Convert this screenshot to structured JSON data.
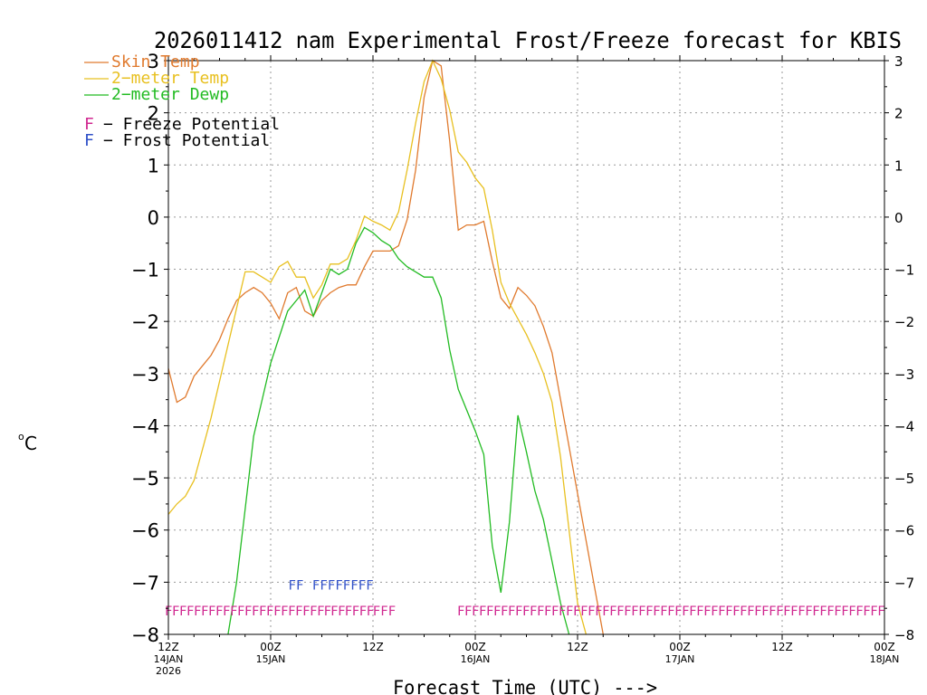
{
  "chart_data": {
    "type": "line",
    "title": "2026011412 nam Experimental Frost/Freeze forecast for KBIS",
    "ylabel": "°C",
    "ylabel_unit": "C",
    "ylabel_degree": "o",
    "xlabel": "Forecast Time (UTC) --->",
    "ylim": [
      -8,
      3
    ],
    "xlim": [
      0,
      84
    ],
    "grid": true,
    "y_ticks": [
      "−8",
      "−7",
      "−6",
      "−5",
      "−4",
      "−3",
      "−2",
      "−1",
      "0",
      "1",
      "2",
      "3"
    ],
    "y_tick_values": [
      -8,
      -7,
      -6,
      -5,
      -4,
      -3,
      -2,
      -1,
      0,
      1,
      2,
      3
    ],
    "x_ticks": [
      {
        "hour": 0,
        "time": "12Z",
        "date": "14JAN",
        "year": "2026"
      },
      {
        "hour": 12,
        "time": "00Z",
        "date": "15JAN",
        "year": ""
      },
      {
        "hour": 24,
        "time": "12Z",
        "date": "",
        "year": ""
      },
      {
        "hour": 36,
        "time": "00Z",
        "date": "16JAN",
        "year": ""
      },
      {
        "hour": 48,
        "time": "12Z",
        "date": "",
        "year": ""
      },
      {
        "hour": 60,
        "time": "00Z",
        "date": "17JAN",
        "year": ""
      },
      {
        "hour": 72,
        "time": "12Z",
        "date": "",
        "year": ""
      },
      {
        "hour": 84,
        "time": "00Z",
        "date": "18JAN",
        "year": ""
      }
    ],
    "series": [
      {
        "name": "Skin Temp",
        "color": "#e07a2e",
        "x": [
          0,
          1,
          2,
          3,
          4,
          5,
          6,
          7,
          8,
          9,
          10,
          11,
          12,
          13,
          14,
          15,
          16,
          17,
          18,
          19,
          20,
          21,
          22,
          23,
          24,
          25,
          26,
          27,
          28,
          29,
          30,
          31,
          32,
          33,
          34,
          35,
          36,
          37,
          38,
          39,
          40,
          41,
          42,
          43,
          44,
          45,
          46,
          47,
          48,
          49,
          50,
          51
        ],
        "y": [
          -2.9,
          -3.55,
          -3.45,
          -3.05,
          -2.85,
          -2.65,
          -2.35,
          -1.95,
          -1.6,
          -1.45,
          -1.35,
          -1.45,
          -1.65,
          -1.95,
          -1.45,
          -1.35,
          -1.8,
          -1.9,
          -1.6,
          -1.45,
          -1.35,
          -1.3,
          -1.3,
          -0.95,
          -0.65,
          -0.65,
          -0.65,
          -0.55,
          -0.05,
          0.9,
          2.3,
          3.0,
          2.9,
          1.45,
          -0.25,
          -0.15,
          -0.15,
          -0.08,
          -0.85,
          -1.55,
          -1.75,
          -1.35,
          -1.5,
          -1.7,
          -2.1,
          -2.6,
          -3.5,
          -4.4,
          -5.3,
          -6.2,
          -7.1,
          -8.0
        ]
      },
      {
        "name": "2-meter Temp",
        "color": "#e8c020",
        "x": [
          0,
          1,
          2,
          3,
          4,
          5,
          6,
          7,
          8,
          9,
          10,
          11,
          12,
          13,
          14,
          15,
          16,
          17,
          18,
          19,
          20,
          21,
          22,
          23,
          24,
          25,
          26,
          27,
          28,
          29,
          30,
          31,
          32,
          33,
          34,
          35,
          36,
          37,
          38,
          39,
          40,
          41,
          42,
          43,
          44,
          45,
          46,
          47,
          48,
          49
        ],
        "y": [
          -5.7,
          -5.5,
          -5.35,
          -5.05,
          -4.45,
          -3.85,
          -3.15,
          -2.45,
          -1.75,
          -1.05,
          -1.05,
          -1.15,
          -1.25,
          -0.95,
          -0.85,
          -1.15,
          -1.15,
          -1.55,
          -1.3,
          -0.9,
          -0.9,
          -0.8,
          -0.45,
          0.02,
          -0.08,
          -0.15,
          -0.25,
          0.1,
          0.9,
          1.8,
          2.6,
          3.0,
          2.65,
          2.05,
          1.25,
          1.05,
          0.75,
          0.55,
          -0.25,
          -1.25,
          -1.65,
          -1.95,
          -2.25,
          -2.6,
          -3.0,
          -3.55,
          -4.6,
          -6.0,
          -7.4,
          -8.0
        ]
      },
      {
        "name": "2-meter Dewp",
        "color": "#22bb22",
        "x": [
          7,
          8,
          9,
          10,
          11,
          12,
          13,
          14,
          15,
          16,
          17,
          18,
          19,
          20,
          21,
          22,
          23,
          24,
          25,
          26,
          27,
          28,
          29,
          30,
          31,
          32,
          33,
          34,
          35,
          36,
          37,
          38,
          39,
          40,
          41,
          42,
          43,
          44,
          45,
          46,
          47
        ],
        "y": [
          -8.0,
          -7.0,
          -5.6,
          -4.2,
          -3.5,
          -2.8,
          -2.3,
          -1.8,
          -1.6,
          -1.4,
          -1.9,
          -1.45,
          -1.0,
          -1.1,
          -1.0,
          -0.5,
          -0.2,
          -0.3,
          -0.45,
          -0.55,
          -0.8,
          -0.95,
          -1.05,
          -1.15,
          -1.15,
          -1.55,
          -2.55,
          -3.3,
          -3.7,
          -4.1,
          -4.55,
          -6.3,
          -7.2,
          -5.85,
          -3.8,
          -4.5,
          -5.25,
          -5.8,
          -6.6,
          -7.4,
          -8.0
        ]
      }
    ],
    "legend": [
      {
        "label": "Skin Temp",
        "color": "#e07a2e"
      },
      {
        "label": "2−meter Temp",
        "color": "#e8c020"
      },
      {
        "label": "2−meter Dewp",
        "color": "#22bb22"
      }
    ],
    "potential_legend": [
      {
        "marker": "F",
        "label": "− Freeze Potential",
        "color": "#d02890"
      },
      {
        "marker": "F",
        "label": "− Frost Potential",
        "color": "#3050c8"
      }
    ],
    "freeze_flags": {
      "color": "#d02890",
      "marker": "F",
      "y_level": -7.5,
      "hours": [
        0,
        0.85,
        1.7,
        2.55,
        3.4,
        4.25,
        5.1,
        5.95,
        6.8,
        7.65,
        8.5,
        9.35,
        10.2,
        11.05,
        11.9,
        12.75,
        13.6,
        14.45,
        15.3,
        16.15,
        17.0,
        17.85,
        18.65,
        19.45,
        20.3,
        21.1,
        21.95,
        22.8,
        23.65,
        24.4,
        25.3,
        26.2,
        34.3,
        35.15,
        36.0,
        36.85,
        37.7,
        38.55,
        39.4,
        40.25,
        41.1,
        41.95,
        42.8,
        43.65,
        44.5,
        45.35,
        46.2,
        47.05,
        47.9,
        48.75,
        49.6,
        50.45,
        51.3,
        52.15,
        53.0,
        53.85,
        54.7,
        55.55,
        56.4,
        57.25,
        58.1,
        58.95,
        59.8,
        60.65,
        61.5,
        62.35,
        63.2,
        64.05,
        64.9,
        65.75,
        66.6,
        67.45,
        68.3,
        69.15,
        70.0,
        70.85,
        71.7,
        72.55,
        73.4,
        74.25,
        75.1,
        75.95,
        76.8,
        77.65,
        78.5,
        79.35,
        80.2,
        81.05,
        81.9,
        82.75,
        83.6
      ]
    },
    "frost_flags": {
      "color": "#3050c8",
      "marker": "F",
      "y_level": -7.0,
      "hours": [
        14.5,
        15.4,
        17.3,
        18.2,
        19.1,
        20.0,
        20.9,
        21.8,
        22.7,
        23.6
      ]
    }
  }
}
